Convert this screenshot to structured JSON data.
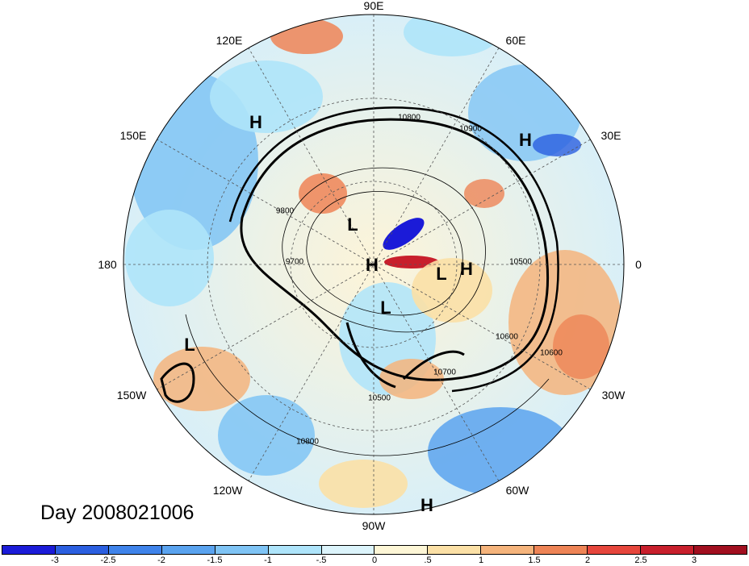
{
  "day_label": "Day 2008021006",
  "longitude_labels": [
    {
      "text": "90E",
      "key": "lon-90e"
    },
    {
      "text": "60E",
      "key": "lon-60e"
    },
    {
      "text": "30E",
      "key": "lon-30e"
    },
    {
      "text": "0",
      "key": "lon-0"
    },
    {
      "text": "30W",
      "key": "lon-30w"
    },
    {
      "text": "60W",
      "key": "lon-60w"
    },
    {
      "text": "90W",
      "key": "lon-90w"
    },
    {
      "text": "120W",
      "key": "lon-120w"
    },
    {
      "text": "150W",
      "key": "lon-150w"
    },
    {
      "text": "180",
      "key": "lon-180"
    },
    {
      "text": "150E",
      "key": "lon-150e"
    },
    {
      "text": "120E",
      "key": "lon-120e"
    }
  ],
  "pressure_systems": [
    {
      "type": "H"
    },
    {
      "type": "H"
    },
    {
      "type": "L"
    },
    {
      "type": "H"
    },
    {
      "type": "L"
    },
    {
      "type": "H"
    },
    {
      "type": "L"
    },
    {
      "type": "H"
    },
    {
      "type": "L"
    }
  ],
  "contour_labels": [
    "10800",
    "10900",
    "9700",
    "9800",
    "10500",
    "10600",
    "10700",
    "10500",
    "10800",
    "10600"
  ],
  "colorbar": {
    "ticks": [
      "-3",
      "-2.5",
      "-2",
      "-1.5",
      "-1",
      "-.5",
      "0",
      ".5",
      "1",
      "1.5",
      "2",
      "2.5",
      "3"
    ],
    "colors": [
      "#1b1bd8",
      "#2b5fe0",
      "#3f83ea",
      "#5aa3ef",
      "#7fc4f5",
      "#aee4fa",
      "#dcf4fb",
      "#fdf6d6",
      "#fbe0a6",
      "#f5b47c",
      "#ee8456",
      "#e6463c",
      "#c81f2c",
      "#a10f1f"
    ]
  }
}
